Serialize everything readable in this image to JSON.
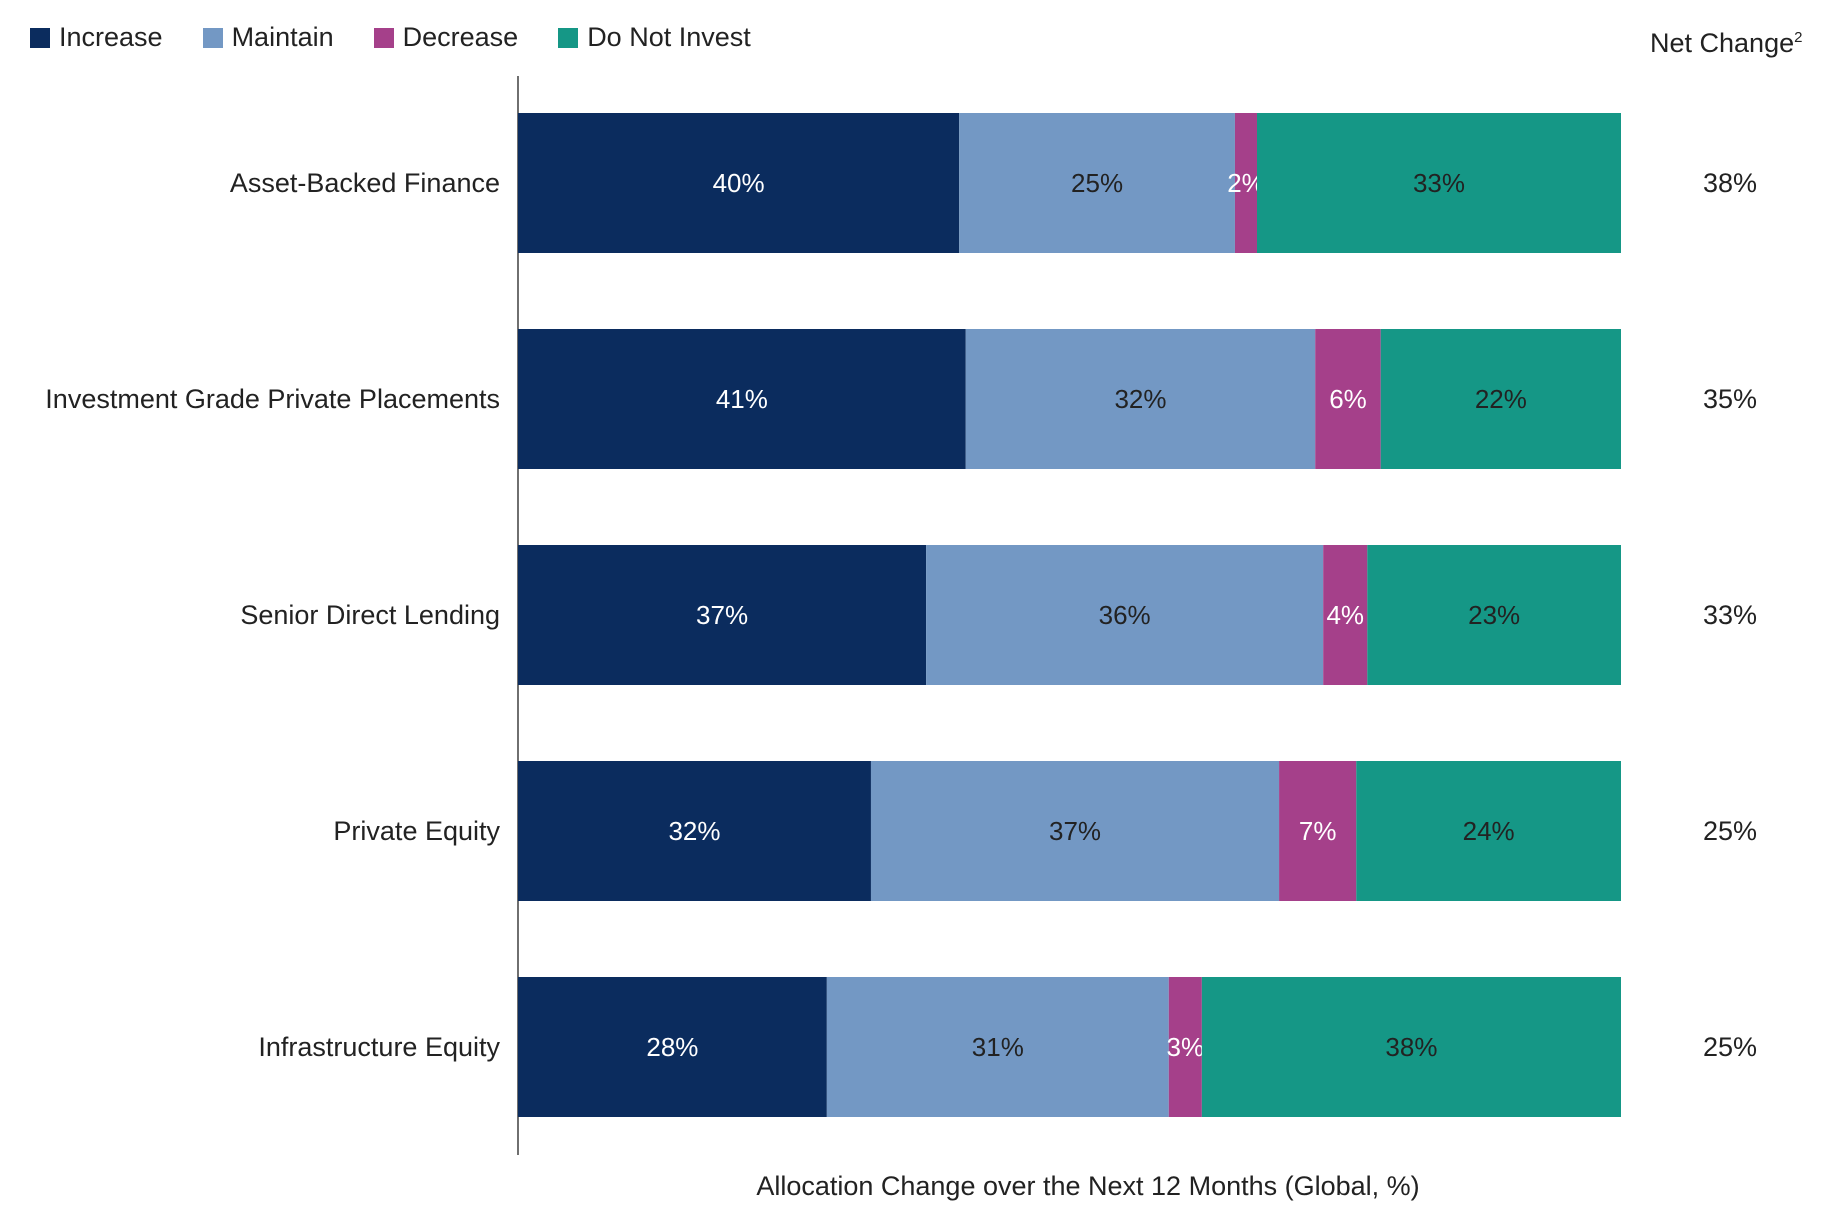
{
  "chart_data": {
    "type": "bar",
    "orientation": "horizontal",
    "stacked": true,
    "xlabel": "Allocation Change over the Next 12 Months (Global, %)",
    "categories": [
      "Asset-Backed Finance",
      "Investment Grade Private Placements",
      "Senior Direct Lending",
      "Private Equity",
      "Infrastructure Equity"
    ],
    "series": [
      {
        "name": "Increase",
        "color": "#0b2c5e",
        "label_color": "#ffffff",
        "values": [
          40,
          41,
          37,
          32,
          28
        ]
      },
      {
        "name": "Maintain",
        "color": "#7398c4",
        "label_color": "#222222",
        "values": [
          25,
          32,
          36,
          37,
          31
        ]
      },
      {
        "name": "Decrease",
        "color": "#a5408a",
        "label_color": "#ffffff",
        "values": [
          2,
          6,
          4,
          7,
          3
        ]
      },
      {
        "name": "Do Not Invest",
        "color": "#159786",
        "label_color": "#222222",
        "values": [
          33,
          22,
          23,
          24,
          38
        ]
      }
    ],
    "value_suffix": "%",
    "legend_position": "top-left",
    "grid": false,
    "net_change": {
      "header": "Net Change",
      "footnote": "2",
      "values": [
        "38%",
        "35%",
        "33%",
        "25%",
        "25%"
      ]
    }
  }
}
